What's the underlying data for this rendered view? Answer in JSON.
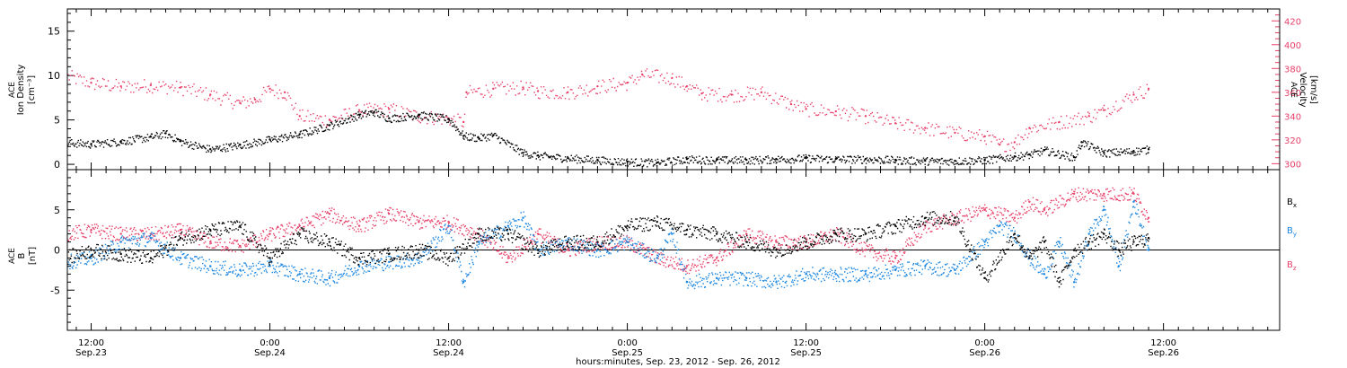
{
  "colors": {
    "axis": "#000000",
    "density": "#000000",
    "velocity": "#e8416a",
    "bx": "#000000",
    "by": "#1a86e0",
    "bz": "#e8416a"
  },
  "xaxis": {
    "range_hours": [
      -1.6,
      79.8
    ],
    "major_every_hours": 12,
    "minor_every_hours": 1,
    "tick_labels": [
      {
        "hour": 0,
        "time": "12:00",
        "date": "Sep.23"
      },
      {
        "hour": 12,
        "time": "0:00",
        "date": "Sep.24"
      },
      {
        "hour": 24,
        "time": "12:00",
        "date": "Sep.24"
      },
      {
        "hour": 36,
        "time": "0:00",
        "date": "Sep.25"
      },
      {
        "hour": 48,
        "time": "12:00",
        "date": "Sep.25"
      },
      {
        "hour": 60,
        "time": "0:00",
        "date": "Sep.26"
      },
      {
        "hour": 72,
        "time": "12:00",
        "date": "Sep.26"
      }
    ],
    "title": "hours:minutes, Sep. 23, 2012 - Sep. 26, 2012"
  },
  "panel1": {
    "left_label": [
      "ACE",
      "Ion Density",
      "[cm⁻³]"
    ],
    "right_label": [
      "ACE",
      "Velocity",
      "[km/s]"
    ],
    "left_ticks": [
      "0",
      "5",
      "10",
      "15"
    ],
    "right_ticks": [
      "300",
      "320",
      "340",
      "360",
      "380",
      "400",
      "420"
    ]
  },
  "panel2": {
    "left_label": [
      "ACE",
      "B",
      "[nT]"
    ],
    "left_ticks": [
      "-5",
      "0",
      "5"
    ],
    "legend": [
      "Bx",
      "By",
      "Bz"
    ]
  },
  "chart_data": [
    {
      "type": "scatter",
      "title": "",
      "xlabel": "hours:minutes, Sep. 23, 2012 - Sep. 26, 2012",
      "x_units": "hours from Sep.23 12:00 UT",
      "xlim": [
        -1.6,
        79.8
      ],
      "ylim": [
        -0.6,
        17.5
      ],
      "y2lim": [
        295,
        430
      ],
      "ylabel": "ACE Ion Density [cm^-3]",
      "y2label": "ACE Velocity [km/s]",
      "series": [
        {
          "name": "ACE Ion Density",
          "axis": "left",
          "x": [
            -2,
            0,
            2,
            4,
            5,
            6,
            8,
            10,
            12,
            14,
            16,
            18,
            19,
            20,
            22,
            24,
            25,
            26,
            27,
            29,
            30,
            32,
            34,
            36,
            38,
            40,
            42,
            44,
            46,
            48,
            50,
            52,
            54,
            56,
            58,
            60,
            62,
            63,
            64,
            66,
            66.5,
            68,
            70,
            71
          ],
          "y": [
            2.5,
            2.3,
            2.6,
            3.1,
            3.5,
            2.6,
            1.7,
            2.2,
            2.8,
            3.4,
            4.4,
            5.6,
            5.9,
            5.2,
            5.6,
            5.1,
            3.2,
            3.0,
            3.3,
            1.3,
            1.0,
            0.7,
            0.5,
            0.3,
            0.2,
            0.6,
            0.5,
            0.5,
            0.6,
            0.7,
            0.6,
            0.6,
            0.5,
            0.4,
            0.4,
            0.5,
            0.9,
            1.1,
            1.6,
            0.8,
            2.5,
            1.3,
            1.5,
            1.7
          ]
        },
        {
          "name": "ACE Velocity",
          "axis": "right",
          "x": [
            -2,
            0,
            2,
            4,
            6,
            8,
            10,
            11,
            12,
            13,
            14,
            16,
            18,
            20,
            22,
            24,
            25,
            25.2,
            27,
            29,
            30,
            32,
            34,
            36,
            37,
            39,
            40,
            41,
            43,
            45,
            47,
            48,
            50,
            52,
            54,
            56,
            58,
            60,
            61,
            62,
            63,
            65,
            67,
            68,
            70,
            71
          ],
          "y": [
            375,
            368,
            365,
            366,
            364,
            358,
            351,
            354,
            363,
            360,
            340,
            337,
            345,
            346,
            340,
            338,
            335,
            360,
            363,
            364,
            361,
            360,
            365,
            368,
            375,
            372,
            365,
            359,
            358,
            360,
            350,
            346,
            344,
            340,
            334,
            330,
            326,
            323,
            316,
            318,
            330,
            335,
            340,
            345,
            358,
            363
          ]
        }
      ]
    },
    {
      "type": "scatter",
      "title": "",
      "xlabel": "hours:minutes, Sep. 23, 2012 - Sep. 26, 2012",
      "x_units": "hours from Sep.23 12:00 UT",
      "xlim": [
        -1.6,
        79.8
      ],
      "ylim": [
        -10.0,
        10.0
      ],
      "ylabel": "ACE B [nT]",
      "series": [
        {
          "name": "Bx",
          "x": [
            -2,
            0,
            2,
            4,
            6,
            8,
            10,
            12,
            14,
            16,
            18,
            20,
            22,
            24,
            26,
            28,
            30,
            32,
            34,
            36,
            38,
            40,
            42,
            44,
            46,
            48,
            50,
            52,
            54,
            56,
            58,
            60,
            62,
            63,
            64,
            65,
            66,
            67,
            68,
            69,
            70,
            71
          ],
          "y": [
            -1,
            0,
            -0.5,
            -1,
            1.5,
            2.5,
            3,
            -1,
            2,
            1,
            -1,
            -0.5,
            0,
            -1,
            2,
            2,
            0,
            1,
            1,
            3,
            3.5,
            2.5,
            2,
            1,
            0,
            1,
            2,
            2,
            3,
            4,
            4,
            -3.5,
            2,
            -1,
            1,
            -4,
            0,
            1,
            2,
            0,
            1,
            1.5
          ]
        },
        {
          "name": "By",
          "x": [
            -2,
            0,
            2,
            4,
            6,
            8,
            10,
            12,
            14,
            16,
            18,
            20,
            22,
            24,
            25,
            26,
            28,
            29,
            30,
            32,
            34,
            36,
            38,
            39,
            40,
            42,
            44,
            46,
            48,
            50,
            52,
            54,
            56,
            58,
            60,
            61,
            62,
            63,
            64,
            65,
            66,
            67,
            68,
            69,
            70,
            71
          ],
          "y": [
            -1.5,
            -1,
            1,
            1.5,
            -1,
            -2,
            -2.5,
            -2,
            -3,
            -3.5,
            -2,
            -1.5,
            -1,
            3,
            -4,
            1,
            3,
            4,
            0,
            1,
            0,
            1,
            -1,
            2,
            -4,
            -3.5,
            -3.5,
            -4,
            -3,
            -3,
            -3,
            -2.5,
            -2,
            -2.5,
            1,
            3,
            2,
            -1,
            -3,
            1,
            -4,
            2,
            5,
            -2,
            6,
            0
          ]
        },
        {
          "name": "Bz",
          "x": [
            -2,
            0,
            2,
            4,
            6,
            8,
            10,
            12,
            14,
            16,
            18,
            20,
            22,
            24,
            26,
            28,
            30,
            32,
            34,
            36,
            38,
            40,
            42,
            44,
            46,
            48,
            50,
            52,
            54,
            56,
            58,
            60,
            62,
            63,
            64,
            66,
            68,
            70,
            71
          ],
          "y": [
            2,
            2.5,
            2,
            2,
            2.5,
            1,
            0.5,
            2,
            3,
            4.5,
            3,
            4.5,
            3.5,
            3.5,
            2,
            -1,
            2,
            0,
            1,
            1,
            -1,
            -2,
            -1,
            2,
            1,
            1,
            2,
            0,
            -1,
            3,
            4,
            5,
            4,
            6,
            5,
            7,
            7,
            7,
            4
          ]
        }
      ]
    }
  ]
}
